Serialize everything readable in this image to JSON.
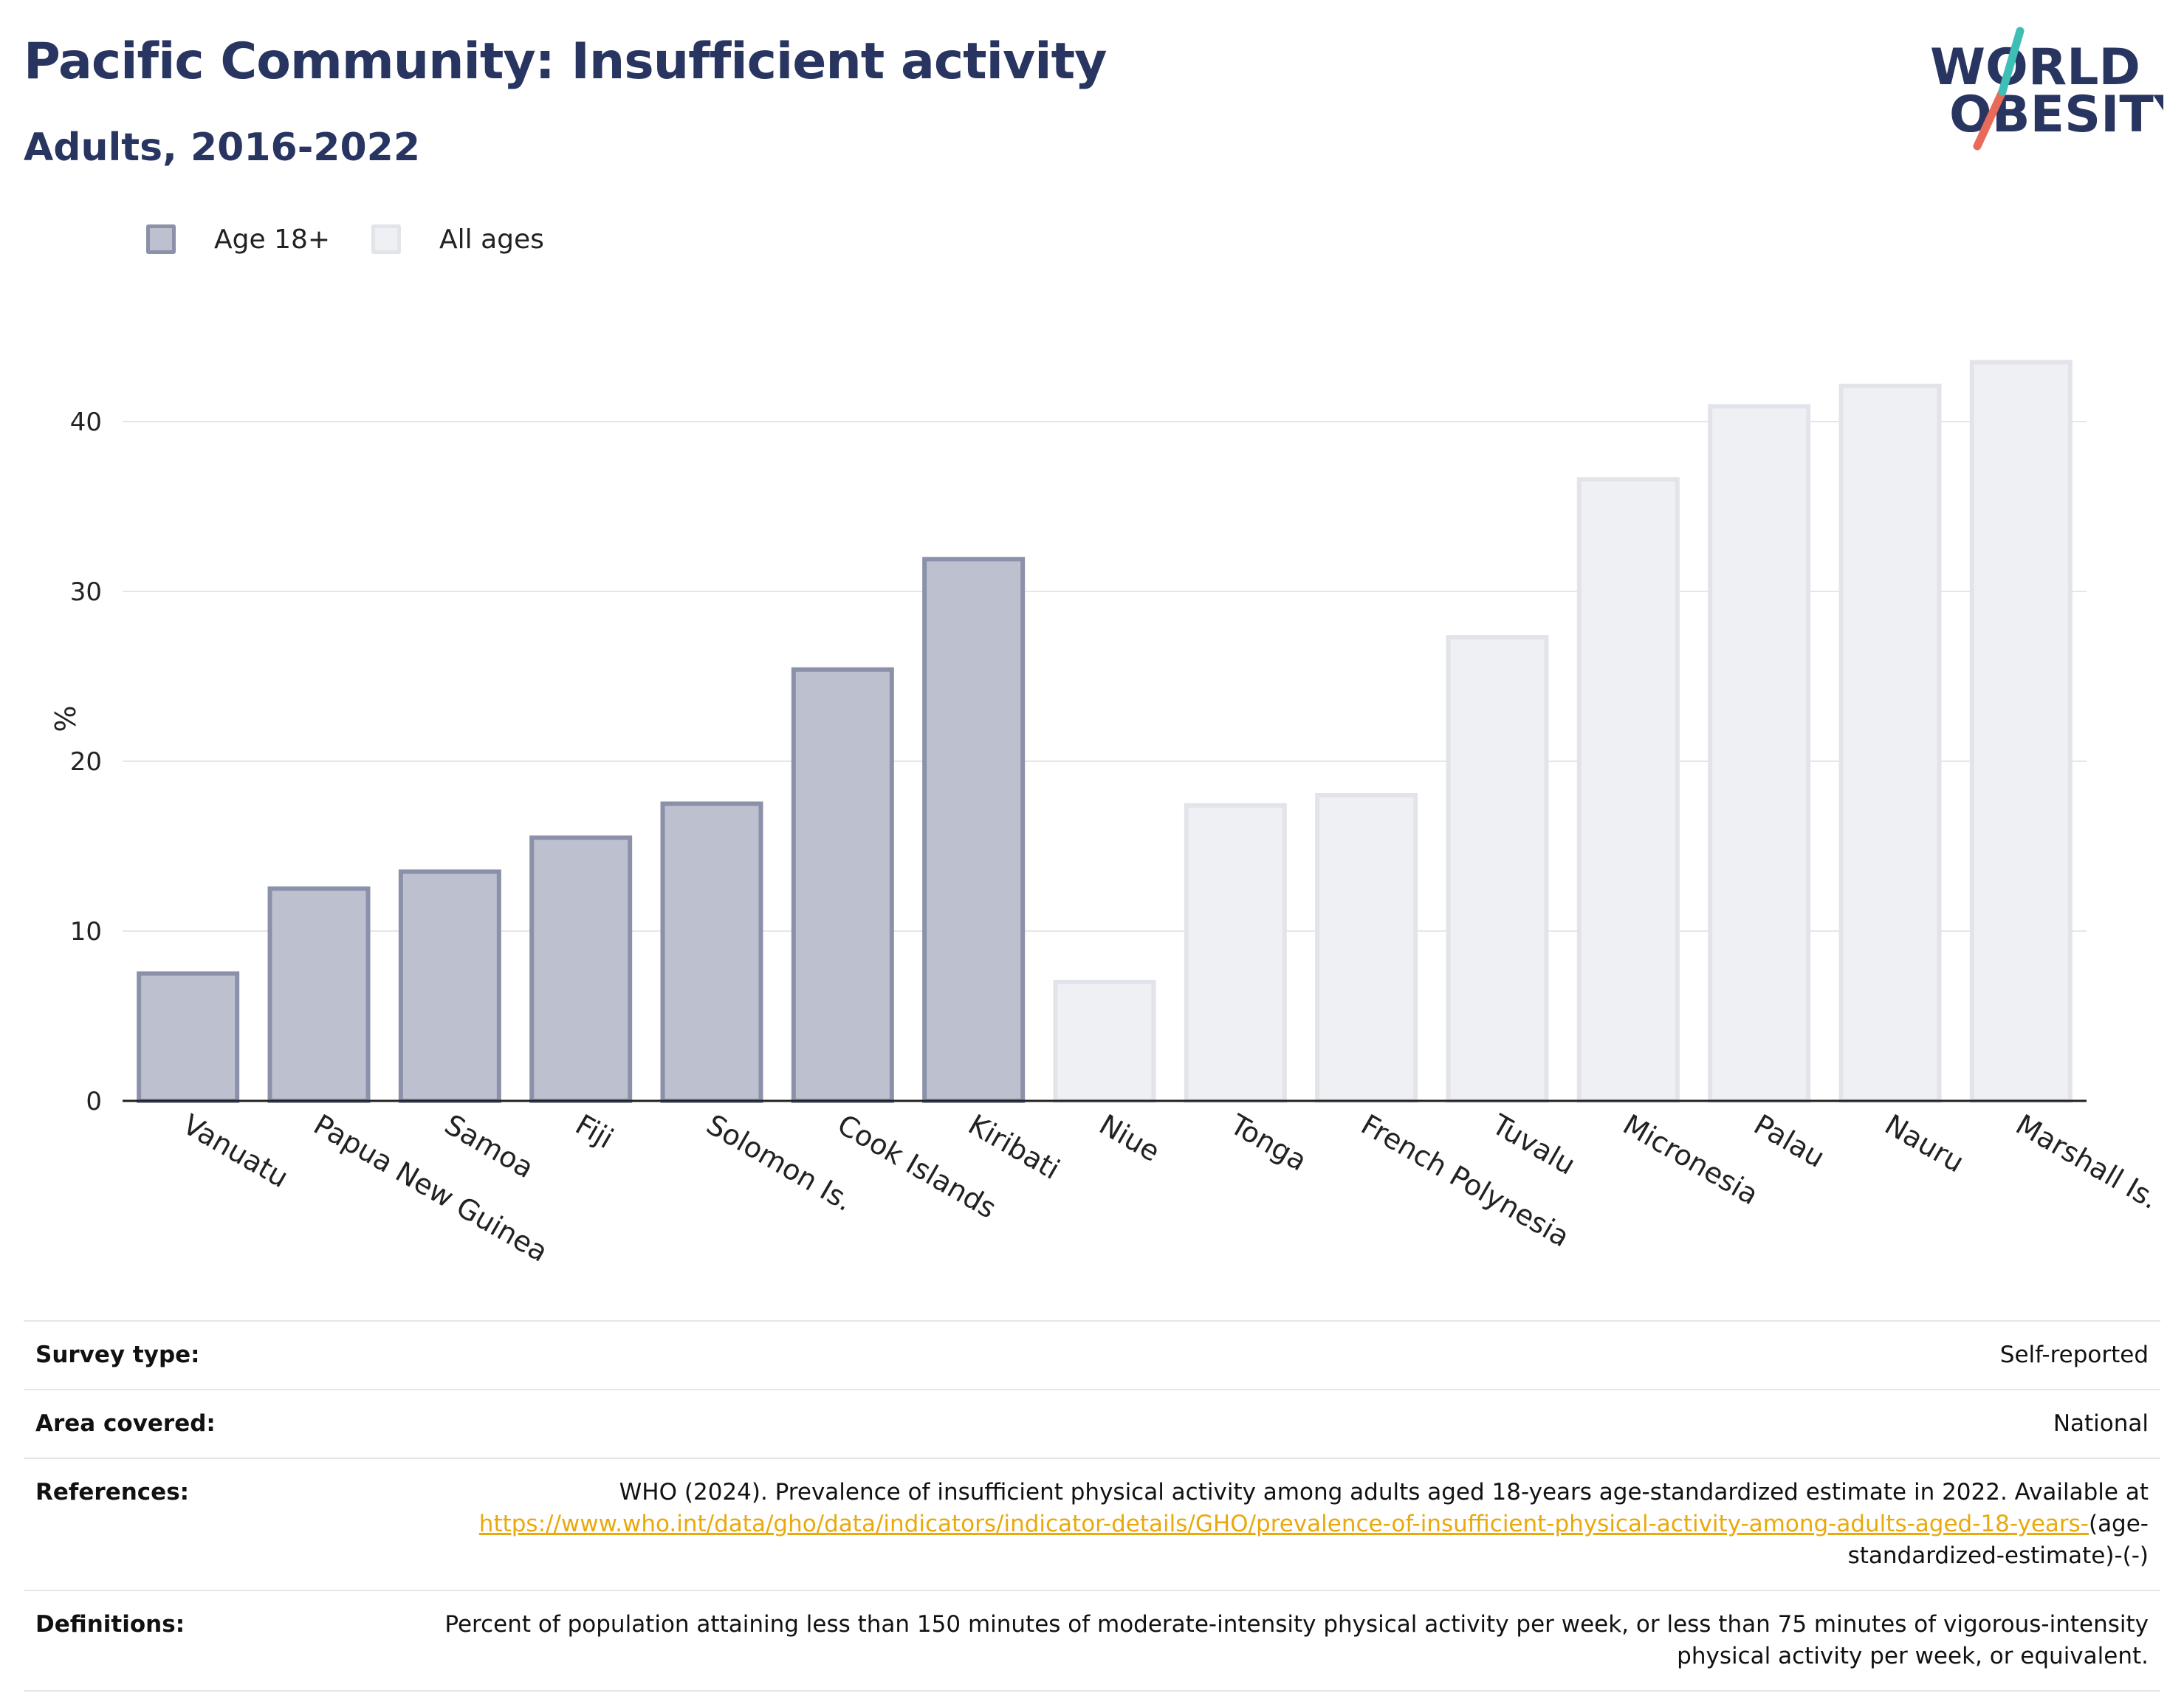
{
  "header": {
    "title": "Pacific Community: Insufficient activity",
    "subtitle": "Adults, 2016-2022"
  },
  "logo": {
    "line1": "WORLD",
    "line2": "OBESITY"
  },
  "legend": [
    {
      "label": "Age 18+",
      "fill": "#bcc0cf",
      "stroke": "#8b91a9"
    },
    {
      "label": "All ages",
      "fill": "#eff0f4",
      "stroke": "#e2e4ea"
    }
  ],
  "colors": {
    "title": "#293561",
    "logo_slash_top": "#3ebfb6",
    "logo_slash_bottom": "#ea6a5a",
    "link": "#e9a90c"
  },
  "chart_data": {
    "type": "bar",
    "title": "Pacific Community: Insufficient activity",
    "subtitle": "Adults, 2016-2022",
    "xlabel": "",
    "ylabel": "%",
    "ylim": [
      0,
      45
    ],
    "yticks": [
      0,
      10,
      20,
      30,
      40
    ],
    "grid": true,
    "legend_position": "top-left",
    "categories": [
      "Vanuatu",
      "Papua New Guinea",
      "Samoa",
      "Fiji",
      "Solomon Is.",
      "Cook Islands",
      "Kiribati",
      "Niue",
      "Tonga",
      "French Polynesia",
      "Tuvalu",
      "Micronesia",
      "Palau",
      "Nauru",
      "Marshall Is."
    ],
    "values": [
      7.5,
      12.5,
      13.5,
      15.5,
      17.5,
      25.4,
      31.9,
      7.0,
      17.4,
      18.0,
      27.3,
      36.6,
      40.9,
      42.1,
      43.5
    ],
    "groups": [
      "Age 18+",
      "Age 18+",
      "Age 18+",
      "Age 18+",
      "Age 18+",
      "Age 18+",
      "Age 18+",
      "All ages",
      "All ages",
      "All ages",
      "All ages",
      "All ages",
      "All ages",
      "All ages",
      "All ages"
    ]
  },
  "info": {
    "survey_type": {
      "label": "Survey type:",
      "value": "Self-reported"
    },
    "area_covered": {
      "label": "Area covered:",
      "value": "National"
    },
    "references": {
      "label": "References:",
      "text": "WHO (2024). Prevalence of insufficient physical activity among adults aged 18-years age-standardized estimate in 2022. Available at",
      "link": "https://www.who.int/data/gho/data/indicators/indicator-details/GHO/prevalence-of-insufficient-physical-activity-among-adults-aged-18-years-",
      "suffix": "(age-standardized-estimate)-(-)"
    },
    "definitions": {
      "label": "Definitions:",
      "value": "Percent of population attaining less than 150 minutes of moderate-intensity physical activity per week, or less than 75 minutes of vigorous-intensity physical activity per week, or equivalent."
    }
  }
}
